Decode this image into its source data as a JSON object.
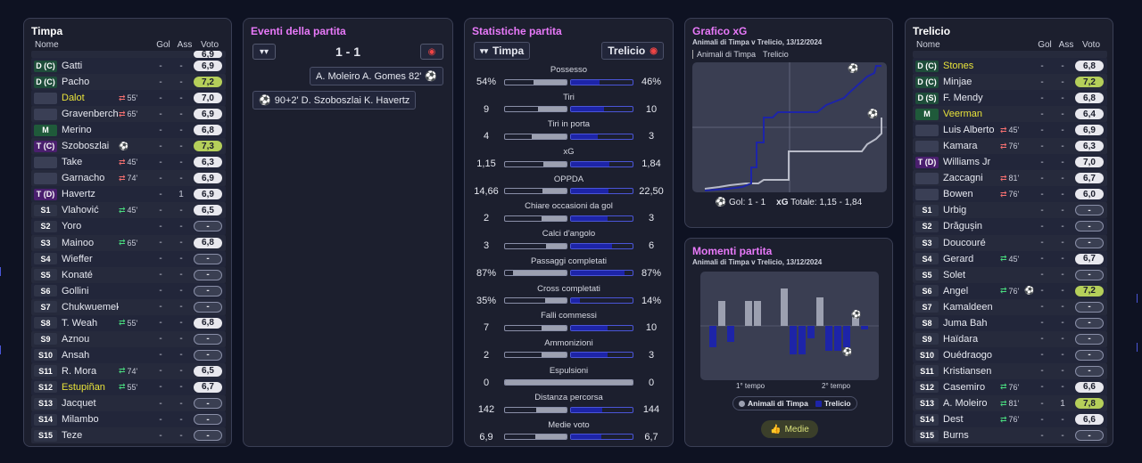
{
  "home": {
    "title": "Timpa",
    "cols": {
      "name": "Nome",
      "goals": "Gol",
      "assists": "Ass",
      "rating": "Voto"
    },
    "players": [
      {
        "pos": "",
        "name": "",
        "sub": "",
        "min": "",
        "g": "-",
        "a": "-",
        "v": "6,9",
        "hl": false,
        "partial": true
      },
      {
        "pos": "D (C)",
        "ptype": "dc",
        "name": "Gatti",
        "sub": "",
        "min": "",
        "g": "-",
        "a": "-",
        "v": "6,9"
      },
      {
        "pos": "D (C)",
        "ptype": "dc",
        "name": "Pacho",
        "sub": "",
        "min": "",
        "g": "-",
        "a": "-",
        "v": "7,2",
        "hi": true
      },
      {
        "pos": "",
        "ptype": "blank",
        "name": "Dalot",
        "yellow": true,
        "sub": "out",
        "min": "55'",
        "g": "-",
        "a": "-",
        "v": "7,0"
      },
      {
        "pos": "",
        "ptype": "blank",
        "name": "Gravenberch",
        "sub": "out",
        "min": "65'",
        "g": "-",
        "a": "-",
        "v": "6,9"
      },
      {
        "pos": "M",
        "ptype": "m",
        "name": "Merino",
        "sub": "",
        "min": "",
        "g": "-",
        "a": "-",
        "v": "6,8"
      },
      {
        "pos": "T (C)",
        "ptype": "t",
        "name": "Szoboszlai",
        "sub": "goal",
        "min": "",
        "g": "-",
        "a": "-",
        "v": "7,3",
        "hi": true
      },
      {
        "pos": "",
        "ptype": "blank",
        "name": "Take",
        "sub": "out",
        "min": "45'",
        "g": "-",
        "a": "-",
        "v": "6,3"
      },
      {
        "pos": "",
        "ptype": "blank",
        "name": "Garnacho",
        "sub": "out",
        "min": "74'",
        "g": "-",
        "a": "-",
        "v": "6,9"
      },
      {
        "pos": "T (D)",
        "ptype": "t",
        "name": "Havertz",
        "sub": "",
        "min": "",
        "g": "-",
        "a": "1",
        "v": "6,9"
      },
      {
        "pos": "S1",
        "ptype": "s",
        "name": "Vlahović",
        "sub": "in",
        "min": "45'",
        "g": "-",
        "a": "-",
        "v": "6,5"
      },
      {
        "pos": "S2",
        "ptype": "s",
        "name": "Yoro",
        "sub": "",
        "min": "",
        "g": "-",
        "a": "-",
        "v": "-"
      },
      {
        "pos": "S3",
        "ptype": "s",
        "name": "Mainoo",
        "sub": "in",
        "min": "65'",
        "g": "-",
        "a": "-",
        "v": "6,8"
      },
      {
        "pos": "S4",
        "ptype": "s",
        "name": "Wieffer",
        "sub": "",
        "min": "",
        "g": "-",
        "a": "-",
        "v": "-"
      },
      {
        "pos": "S5",
        "ptype": "s",
        "name": "Konaté",
        "sub": "",
        "min": "",
        "g": "-",
        "a": "-",
        "v": "-"
      },
      {
        "pos": "S6",
        "ptype": "s",
        "name": "Gollini",
        "sub": "",
        "min": "",
        "g": "-",
        "a": "-",
        "v": "-"
      },
      {
        "pos": "S7",
        "ptype": "s",
        "name": "Chukwuemeka",
        "sub": "",
        "min": "",
        "g": "-",
        "a": "-",
        "v": "-"
      },
      {
        "pos": "S8",
        "ptype": "s",
        "name": "T. Weah",
        "sub": "in",
        "min": "55'",
        "g": "-",
        "a": "-",
        "v": "6,8"
      },
      {
        "pos": "S9",
        "ptype": "s",
        "name": "Aznou",
        "sub": "",
        "min": "",
        "g": "-",
        "a": "-",
        "v": "-"
      },
      {
        "pos": "S10",
        "ptype": "s",
        "name": "Ansah",
        "sub": "",
        "min": "",
        "g": "-",
        "a": "-",
        "v": "-"
      },
      {
        "pos": "S11",
        "ptype": "s",
        "name": "R. Mora",
        "sub": "in",
        "min": "74'",
        "g": "-",
        "a": "-",
        "v": "6,5"
      },
      {
        "pos": "S12",
        "ptype": "s",
        "name": "Estupiñan",
        "yellow": true,
        "sub": "in",
        "min": "55'",
        "g": "-",
        "a": "-",
        "v": "6,7"
      },
      {
        "pos": "S13",
        "ptype": "s",
        "name": "Jacquet",
        "sub": "",
        "min": "",
        "g": "-",
        "a": "-",
        "v": "-"
      },
      {
        "pos": "S14",
        "ptype": "s",
        "name": "Milambo",
        "sub": "",
        "min": "",
        "g": "-",
        "a": "-",
        "v": "-"
      },
      {
        "pos": "S15",
        "ptype": "s",
        "name": "Teze",
        "sub": "",
        "min": "",
        "g": "-",
        "a": "-",
        "v": "-"
      }
    ]
  },
  "away": {
    "title": "Trelicio",
    "cols": {
      "name": "Nome",
      "goals": "Gol",
      "assists": "Ass",
      "rating": "Voto"
    },
    "players": [
      {
        "pos": "",
        "name": "",
        "sub": "",
        "min": "",
        "g": "",
        "a": "",
        "v": "",
        "partial": true
      },
      {
        "pos": "D (C)",
        "ptype": "dc",
        "name": "Stones",
        "yellow": true,
        "sub": "",
        "min": "",
        "g": "-",
        "a": "-",
        "v": "6,8"
      },
      {
        "pos": "D (C)",
        "ptype": "dc",
        "name": "Minjae",
        "sub": "",
        "min": "",
        "g": "-",
        "a": "-",
        "v": "7,2",
        "hi": true
      },
      {
        "pos": "D (S)",
        "ptype": "dc",
        "name": "F. Mendy",
        "sub": "",
        "min": "",
        "g": "-",
        "a": "-",
        "v": "6,8"
      },
      {
        "pos": "M",
        "ptype": "m",
        "name": "Veerman",
        "yellow": true,
        "sub": "",
        "min": "",
        "g": "-",
        "a": "-",
        "v": "6,4"
      },
      {
        "pos": "",
        "ptype": "blank",
        "name": "Luis Alberto",
        "sub": "out",
        "min": "45'",
        "g": "-",
        "a": "-",
        "v": "6,9"
      },
      {
        "pos": "",
        "ptype": "blank",
        "name": "Kamara",
        "sub": "out",
        "min": "76'",
        "g": "-",
        "a": "-",
        "v": "6,3"
      },
      {
        "pos": "T (D)",
        "ptype": "t",
        "name": "Williams Jr",
        "sub": "",
        "min": "",
        "g": "-",
        "a": "-",
        "v": "7,0"
      },
      {
        "pos": "",
        "ptype": "blank",
        "name": "Zaccagni",
        "sub": "out",
        "min": "81'",
        "g": "-",
        "a": "-",
        "v": "6,7"
      },
      {
        "pos": "",
        "ptype": "blank",
        "name": "Bowen",
        "sub": "out",
        "min": "76'",
        "g": "-",
        "a": "-",
        "v": "6,0"
      },
      {
        "pos": "S1",
        "ptype": "s",
        "name": "Urbig",
        "sub": "",
        "min": "",
        "g": "-",
        "a": "-",
        "v": "-"
      },
      {
        "pos": "S2",
        "ptype": "s",
        "name": "Drăgușin",
        "sub": "",
        "min": "",
        "g": "-",
        "a": "-",
        "v": "-"
      },
      {
        "pos": "S3",
        "ptype": "s",
        "name": "Doucouré",
        "sub": "",
        "min": "",
        "g": "-",
        "a": "-",
        "v": "-"
      },
      {
        "pos": "S4",
        "ptype": "s",
        "name": "Gerard",
        "sub": "in",
        "min": "45'",
        "g": "-",
        "a": "-",
        "v": "6,7"
      },
      {
        "pos": "S5",
        "ptype": "s",
        "name": "Solet",
        "sub": "",
        "min": "",
        "g": "-",
        "a": "-",
        "v": "-"
      },
      {
        "pos": "S6",
        "ptype": "s",
        "name": "Angel",
        "sub": "in",
        "min": "76'",
        "goalicon": true,
        "g": "-",
        "a": "-",
        "v": "7,2",
        "hi": true
      },
      {
        "pos": "S7",
        "ptype": "s",
        "name": "Kamaldeen",
        "sub": "",
        "min": "",
        "g": "-",
        "a": "-",
        "v": "-"
      },
      {
        "pos": "S8",
        "ptype": "s",
        "name": "Juma Bah",
        "sub": "",
        "min": "",
        "g": "-",
        "a": "-",
        "v": "-"
      },
      {
        "pos": "S9",
        "ptype": "s",
        "name": "Haïdara",
        "sub": "",
        "min": "",
        "g": "-",
        "a": "-",
        "v": "-"
      },
      {
        "pos": "S10",
        "ptype": "s",
        "name": "Ouédraogo",
        "sub": "",
        "min": "",
        "g": "-",
        "a": "-",
        "v": "-"
      },
      {
        "pos": "S11",
        "ptype": "s",
        "name": "Kristiansen",
        "sub": "",
        "min": "",
        "g": "-",
        "a": "-",
        "v": "-"
      },
      {
        "pos": "S12",
        "ptype": "s",
        "name": "Casemiro",
        "sub": "in",
        "min": "76'",
        "g": "-",
        "a": "-",
        "v": "6,6"
      },
      {
        "pos": "S13",
        "ptype": "s",
        "name": "A. Moleiro",
        "sub": "in",
        "min": "81'",
        "g": "-",
        "a": "1",
        "v": "7,8",
        "hi": true
      },
      {
        "pos": "S14",
        "ptype": "s",
        "name": "Dest",
        "sub": "in",
        "min": "76'",
        "g": "-",
        "a": "-",
        "v": "6,6"
      },
      {
        "pos": "S15",
        "ptype": "s",
        "name": "Burns",
        "sub": "",
        "min": "",
        "g": "-",
        "a": "-",
        "v": "-"
      }
    ]
  },
  "events": {
    "title": "Eventi della partita",
    "score": "1 - 1",
    "away_event": {
      "text": "A. Moleiro A. Gomes 82'"
    },
    "home_event": {
      "text": "90+2' D. Szoboszlai K. Havertz"
    }
  },
  "stats": {
    "title": "Statistiche partita",
    "home": "Timpa",
    "away": "Trelicio",
    "items": [
      {
        "label": "Possesso",
        "l": "54%",
        "r": "46%",
        "lp": 54,
        "rp": 46
      },
      {
        "label": "Tiri",
        "l": "9",
        "r": "10",
        "lp": 47,
        "rp": 53
      },
      {
        "label": "Tiri in porta",
        "l": "4",
        "r": "3",
        "lp": 57,
        "rp": 43
      },
      {
        "label": "xG",
        "l": "1,15",
        "r": "1,84",
        "lp": 38,
        "rp": 62
      },
      {
        "label": "OPPDA",
        "l": "14,66",
        "r": "22,50",
        "lp": 39,
        "rp": 61
      },
      {
        "label": "Chiare occasioni da gol",
        "l": "2",
        "r": "3",
        "lp": 40,
        "rp": 60
      },
      {
        "label": "Calci d'angolo",
        "l": "3",
        "r": "6",
        "lp": 33,
        "rp": 67
      },
      {
        "label": "Passaggi completati",
        "l": "87%",
        "r": "87%",
        "lp": 87,
        "rp": 87
      },
      {
        "label": "Cross completati",
        "l": "35%",
        "r": "14%",
        "lp": 35,
        "rp": 14
      },
      {
        "label": "Falli commessi",
        "l": "7",
        "r": "10",
        "lp": 41,
        "rp": 59
      },
      {
        "label": "Ammonizioni",
        "l": "2",
        "r": "3",
        "lp": 40,
        "rp": 60
      },
      {
        "label": "Espulsioni",
        "l": "0",
        "r": "0",
        "lp": 100,
        "rp": 0
      },
      {
        "label": "Distanza percorsa",
        "l": "142",
        "r": "144",
        "lp": 50,
        "rp": 50
      },
      {
        "label": "Medie voto",
        "l": "6,9",
        "r": "6,7",
        "lp": 51,
        "rp": 49
      }
    ]
  },
  "xg": {
    "title": "Grafico xG",
    "subtitle": "Animali di Timpa v Trelicio, 13/12/2024",
    "legend_home": "Animali di Timpa",
    "legend_away": "Trelicio",
    "goals_label": "Gol: 1 - 1",
    "xg_label": "xG",
    "xg_total": "Totale: 1,15 - 1,84"
  },
  "momentum": {
    "title": "Momenti partita",
    "subtitle": "Animali di Timpa v Trelicio, 13/12/2024",
    "label_first": "1° tempo",
    "label_second": "2° tempo",
    "legend_home": "Animali di Timpa",
    "legend_away": "Trelicio",
    "button": "Medie"
  },
  "colors": {
    "home": "#9ca0b0",
    "away": "#1d24a8",
    "accent": "#e879f9",
    "highlight": "#b5cf5a"
  }
}
